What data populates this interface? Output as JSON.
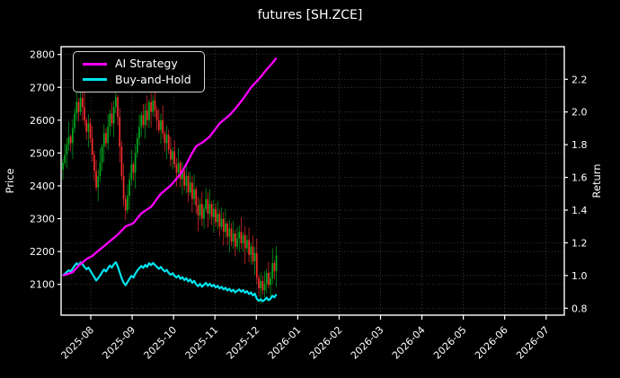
{
  "title": "futures [SH.ZCE]",
  "legend": [
    {
      "label": "AI Strategy",
      "color": "#ff00ff"
    },
    {
      "label": "Buy-and-Hold",
      "color": "#00e5ee"
    }
  ],
  "axes": {
    "left_label": "Price",
    "right_label": "Return",
    "price_ticks": [
      2100,
      2200,
      2300,
      2400,
      2500,
      2600,
      2700,
      2800
    ],
    "return_ticks": [
      0.8,
      1.0,
      1.2,
      1.4,
      1.6,
      1.8,
      2.0,
      2.2
    ],
    "x_ticks": [
      "2025-08",
      "2025-09",
      "2025-10",
      "2025-11",
      "2025-12",
      "2026-01",
      "2026-02",
      "2026-03",
      "2026-04",
      "2026-05",
      "2026-06",
      "2026-07"
    ]
  },
  "colors": {
    "background": "#000000",
    "text": "#ffffff",
    "grid": "rgba(255,255,255,0.32)",
    "spine": "#ffffff",
    "candle_up": "#00a81e",
    "candle_down": "#f32c2c",
    "ai_line": "#ff00ff",
    "buy_hold_line": "#00e5ee"
  },
  "chart_data": {
    "type": "candlestick+line",
    "title": "futures [SH.ZCE]",
    "xlabel": "",
    "ylabel_left": "Price",
    "ylabel_right": "Return",
    "price_ylim": [
      2005,
      2824
    ],
    "return_ylim": [
      0.75,
      2.4
    ],
    "grid": "dotted, on both price and return tick levels plus monthly verticals",
    "legend_position": "upper left",
    "candles": {
      "first_open": 2450,
      "closes": [
        2470,
        2495,
        2525,
        2550,
        2530,
        2575,
        2620,
        2655,
        2625,
        2668,
        2640,
        2600,
        2565,
        2590,
        2545,
        2495,
        2445,
        2395,
        2430,
        2470,
        2520,
        2560,
        2530,
        2580,
        2620,
        2590,
        2640,
        2670,
        2610,
        2520,
        2430,
        2360,
        2325,
        2370,
        2420,
        2465,
        2440,
        2500,
        2545,
        2580,
        2615,
        2585,
        2630,
        2600,
        2655,
        2625,
        2660,
        2630,
        2600,
        2570,
        2600,
        2560,
        2530,
        2555,
        2510,
        2480,
        2505,
        2465,
        2440,
        2470,
        2420,
        2445,
        2400,
        2430,
        2380,
        2410,
        2360,
        2390,
        2340,
        2310,
        2345,
        2300,
        2330,
        2360,
        2315,
        2345,
        2305,
        2330,
        2290,
        2315,
        2275,
        2300,
        2260,
        2285,
        2245,
        2270,
        2230,
        2255,
        2215,
        2240,
        2260,
        2225,
        2250,
        2210,
        2235,
        2190,
        2215,
        2170,
        2195,
        2120,
        2088,
        2110,
        2082,
        2102,
        2135,
        2098,
        2118,
        2165,
        2140,
        2188
      ],
      "upper_wick_cycle": [
        12,
        34,
        20,
        45,
        8,
        28,
        16,
        38
      ],
      "lower_wick_cycle": [
        30,
        10,
        42,
        18,
        25,
        48,
        14,
        22
      ]
    },
    "series": [
      {
        "name": "AI Strategy",
        "axis": "return",
        "color": "#ff00ff",
        "keypoints": [
          [
            0,
            1.0
          ],
          [
            5,
            1.02
          ],
          [
            8,
            1.06
          ],
          [
            12,
            1.1
          ],
          [
            15,
            1.12
          ],
          [
            20,
            1.17
          ],
          [
            25,
            1.22
          ],
          [
            28,
            1.25
          ],
          [
            32,
            1.3
          ],
          [
            36,
            1.32
          ],
          [
            40,
            1.38
          ],
          [
            45,
            1.42
          ],
          [
            50,
            1.5
          ],
          [
            55,
            1.55
          ],
          [
            60,
            1.62
          ],
          [
            63,
            1.68
          ],
          [
            66,
            1.75
          ],
          [
            68,
            1.79
          ],
          [
            72,
            1.82
          ],
          [
            75,
            1.85
          ],
          [
            80,
            1.93
          ],
          [
            85,
            1.98
          ],
          [
            88,
            2.02
          ],
          [
            92,
            2.08
          ],
          [
            96,
            2.15
          ],
          [
            100,
            2.2
          ],
          [
            104,
            2.26
          ],
          [
            107,
            2.3
          ],
          [
            109,
            2.33
          ]
        ]
      },
      {
        "name": "Buy-and-Hold",
        "axis": "return",
        "color": "#00e5ee",
        "source": "closes_normalized_to_first_close"
      }
    ]
  }
}
